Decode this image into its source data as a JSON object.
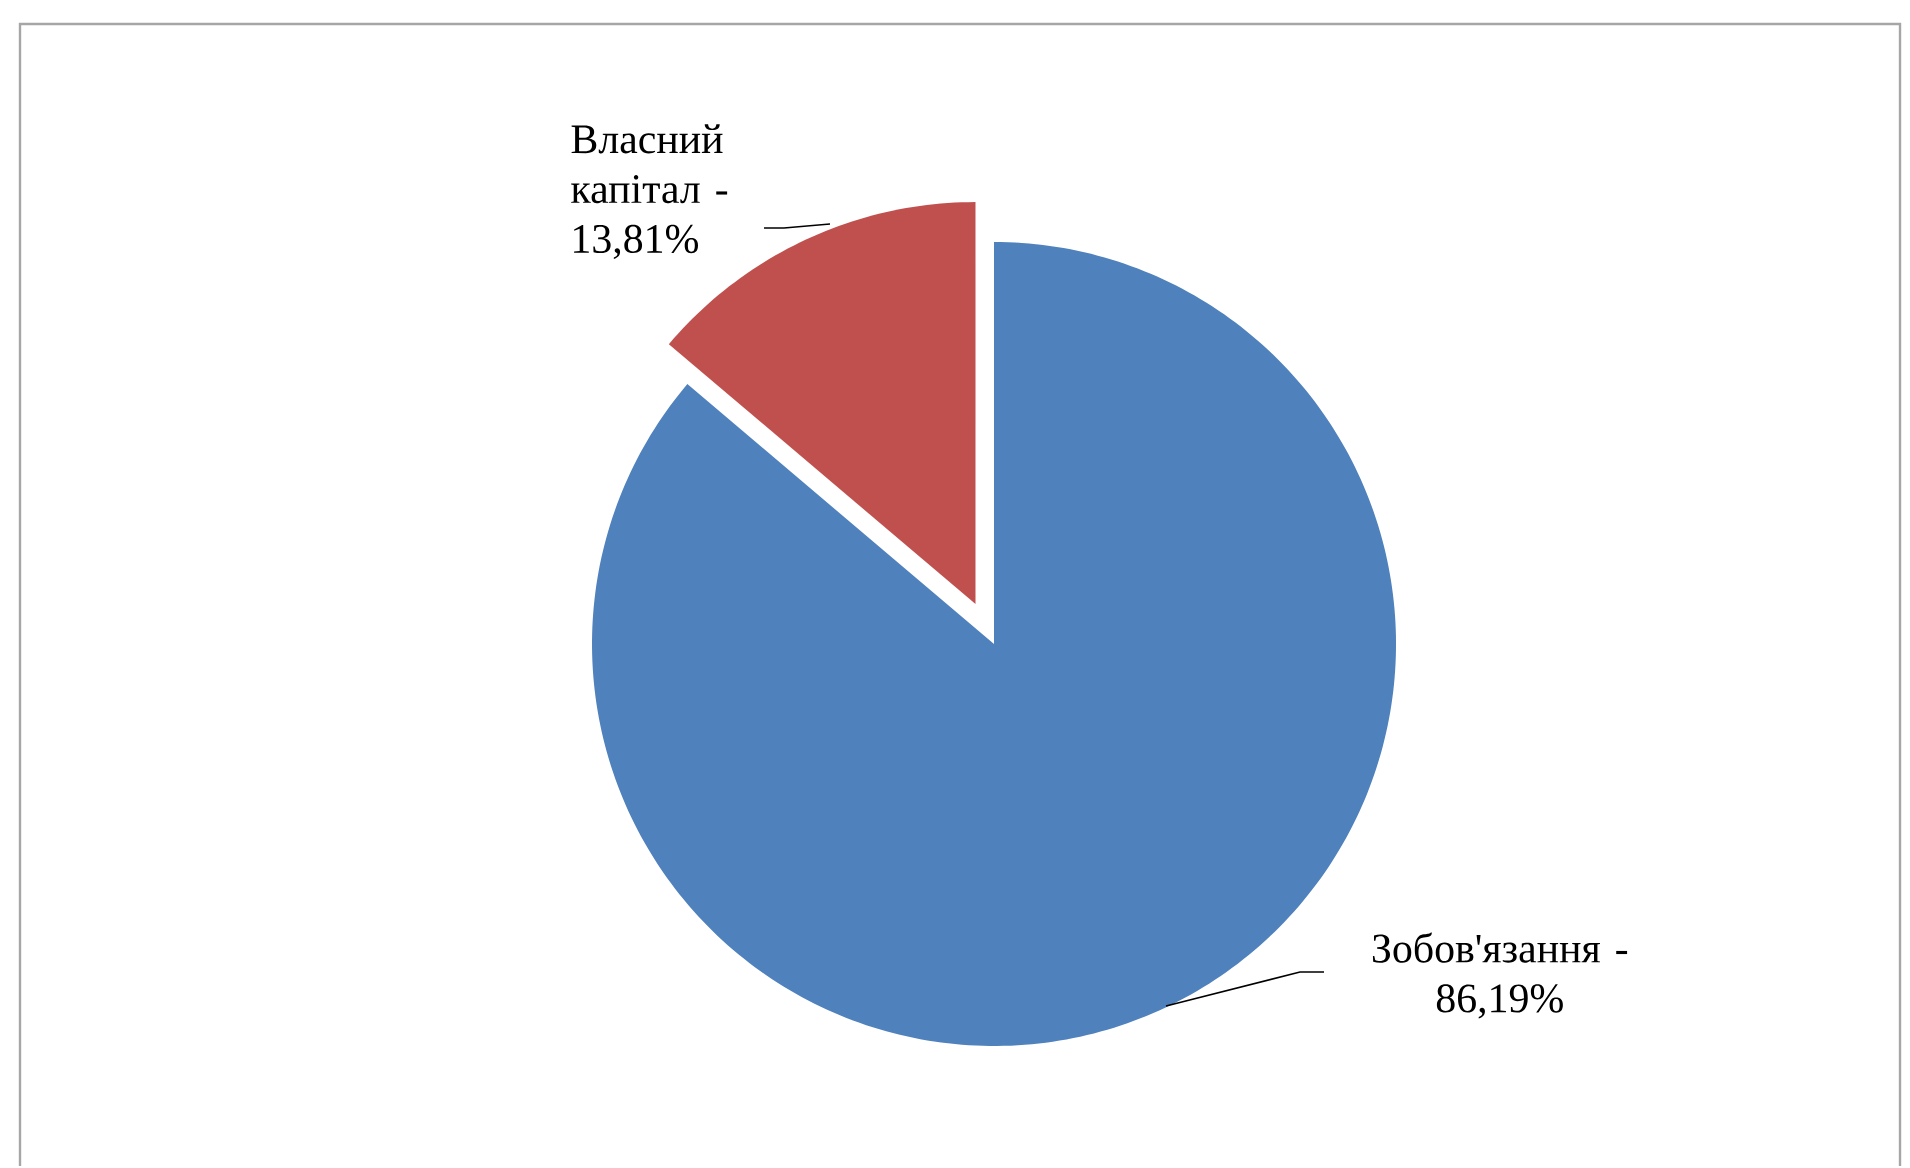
{
  "chart_data": {
    "type": "pie",
    "categories": [
      "Зобов'язання -",
      "Власний капітал -"
    ],
    "values": [
      86.19,
      13.81
    ],
    "value_labels": [
      "86,19%",
      "13,81%"
    ],
    "colors": [
      "#4f81bd",
      "#c0504d"
    ]
  }
}
